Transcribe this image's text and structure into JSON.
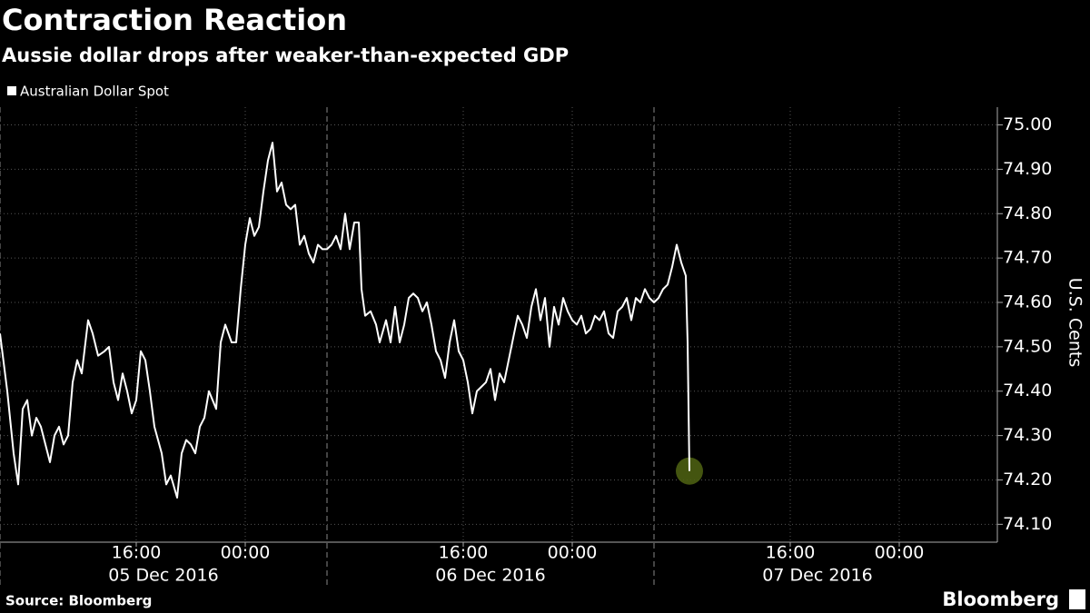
{
  "chart_data": {
    "type": "line",
    "title": "Contraction Reaction",
    "subtitle": "Aussie dollar drops after weaker-than-expected GDP",
    "y_label": "U.S. Cents",
    "source": "Source: Bloomberg",
    "brand": "Bloomberg",
    "x": [
      0,
      32,
      60,
      80,
      100,
      120,
      140,
      160,
      180,
      200,
      220,
      240,
      260,
      280,
      300,
      320,
      340,
      360,
      388,
      408,
      432,
      460,
      480,
      500,
      520,
      540,
      560,
      580,
      600,
      620,
      640,
      660,
      680,
      712,
      732,
      752,
      780,
      800,
      820,
      840,
      860,
      880,
      900,
      920,
      952,
      972,
      992,
      1020,
      1040,
      1060,
      1080,
      1100,
      1120,
      1140,
      1160,
      1180,
      1200,
      1220,
      1240,
      1260,
      1280,
      1300,
      1320,
      1340,
      1360,
      1380,
      1400,
      1420,
      1440,
      1460,
      1480,
      1500,
      1520,
      1540,
      1560,
      1580,
      1592,
      1608,
      1632,
      1656,
      1672,
      1700,
      1720,
      1740,
      1760,
      1780,
      1800,
      1820,
      1840,
      1860,
      1880,
      1900,
      1920,
      1940,
      1960,
      1980,
      2000,
      2020,
      2040,
      2060,
      2080,
      2100,
      2120,
      2140,
      2160,
      2180,
      2200,
      2220,
      2240,
      2260,
      2280,
      2300,
      2320,
      2340,
      2360,
      2380,
      2400,
      2420,
      2440,
      2460,
      2480,
      2500,
      2520,
      2540,
      2560,
      2580,
      2600,
      2620,
      2640,
      2660,
      2680,
      2700,
      2720,
      2740,
      2760,
      2780,
      2800,
      2820,
      2840,
      2860,
      2880,
      2900,
      2920,
      2940,
      2960,
      2980,
      3000,
      3020,
      3028,
      3036
    ],
    "series": [
      {
        "name": "Australian Dollar Spot",
        "color": "#ffffff",
        "values": [
          74.53,
          74.4,
          74.26,
          74.19,
          74.36,
          74.38,
          74.3,
          74.34,
          74.32,
          74.28,
          74.24,
          74.3,
          74.32,
          74.28,
          74.3,
          74.42,
          74.47,
          74.44,
          74.56,
          74.53,
          74.48,
          74.49,
          74.5,
          74.42,
          74.38,
          74.44,
          74.4,
          74.35,
          74.38,
          74.49,
          74.47,
          74.4,
          74.32,
          74.26,
          74.19,
          74.21,
          74.16,
          74.26,
          74.29,
          74.28,
          74.26,
          74.32,
          74.34,
          74.4,
          74.36,
          74.51,
          74.55,
          74.51,
          74.51,
          74.63,
          74.73,
          74.79,
          74.75,
          74.77,
          74.85,
          74.92,
          74.96,
          74.85,
          74.87,
          74.82,
          74.81,
          74.82,
          74.73,
          74.75,
          74.71,
          74.69,
          74.73,
          74.72,
          74.72,
          74.73,
          74.75,
          74.72,
          74.8,
          74.72,
          74.78,
          74.78,
          74.63,
          74.57,
          74.58,
          74.55,
          74.51,
          74.56,
          74.51,
          74.59,
          74.51,
          74.55,
          74.61,
          74.62,
          74.61,
          74.58,
          74.6,
          74.55,
          74.49,
          74.47,
          74.43,
          74.51,
          74.56,
          74.49,
          74.47,
          74.42,
          74.35,
          74.4,
          74.41,
          74.42,
          74.45,
          74.38,
          74.44,
          74.42,
          74.47,
          74.52,
          74.57,
          74.55,
          74.52,
          74.59,
          74.63,
          74.56,
          74.61,
          74.5,
          74.59,
          74.55,
          74.61,
          74.58,
          74.56,
          74.55,
          74.57,
          74.53,
          74.54,
          74.57,
          74.56,
          74.58,
          74.53,
          74.52,
          74.58,
          74.59,
          74.61,
          74.56,
          74.61,
          74.6,
          74.63,
          74.61,
          74.6,
          74.61,
          74.63,
          74.64,
          74.68,
          74.73,
          74.69,
          74.66,
          74.51,
          74.22
        ]
      }
    ],
    "highlight_last_color": "#4b5e12",
    "xlim": [
      0,
      4392
    ],
    "xticks": [
      {
        "value": 600,
        "label": "16:00"
      },
      {
        "value": 1080,
        "label": "00:00"
      },
      {
        "value": 2040,
        "label": "16:00"
      },
      {
        "value": 2520,
        "label": "00:00"
      },
      {
        "value": 3480,
        "label": "16:00"
      },
      {
        "value": 3960,
        "label": "00:00"
      }
    ],
    "day_breaks": [
      0,
      1440,
      2880
    ],
    "day_labels": [
      {
        "value": 720,
        "label": "05 Dec 2016"
      },
      {
        "value": 2160,
        "label": "06 Dec 2016"
      },
      {
        "value": 3600,
        "label": "07 Dec 2016"
      }
    ],
    "ylim": [
      74.07,
      75.04
    ],
    "yticks": [
      {
        "value": 74.1,
        "label": "74.10"
      },
      {
        "value": 74.2,
        "label": "74.20"
      },
      {
        "value": 74.3,
        "label": "74.30"
      },
      {
        "value": 74.4,
        "label": "74.40"
      },
      {
        "value": 74.5,
        "label": "74.50"
      },
      {
        "value": 74.6,
        "label": "74.60"
      },
      {
        "value": 74.7,
        "label": "74.70"
      },
      {
        "value": 74.8,
        "label": "74.80"
      },
      {
        "value": 74.9,
        "label": "74.90"
      },
      {
        "value": 75.0,
        "label": "75.00"
      }
    ],
    "grid": true
  }
}
